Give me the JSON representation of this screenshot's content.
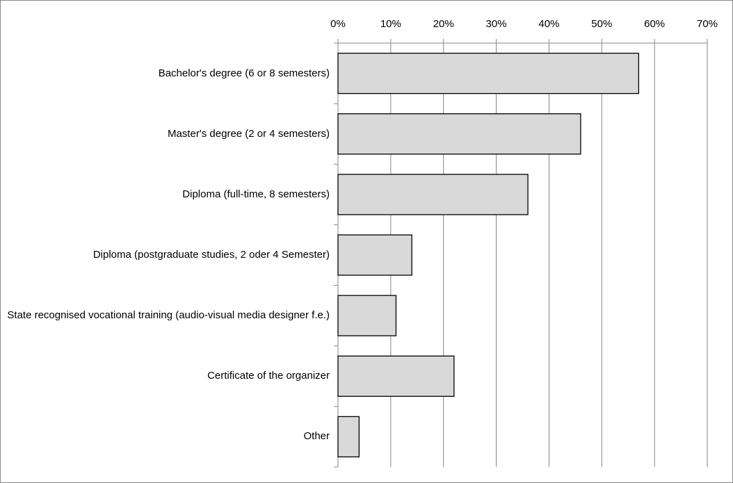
{
  "chart_data": {
    "type": "barh",
    "categories": [
      "Bachelor's degree (6 or 8 semesters)",
      "Master's degree (2 or 4 semesters)",
      "Diploma (full-time, 8 semesters)",
      "Diploma (postgraduate studies, 2 oder 4 Semester)",
      "State recognised vocational training (audio-visual media designer f.e.)",
      "Certificate of the organizer",
      "Other"
    ],
    "values": [
      57,
      46,
      36,
      14,
      11,
      22,
      4
    ],
    "color": "#d9d9d9",
    "xlim": [
      0,
      70
    ],
    "xticks": [
      {
        "value": 0,
        "label": "0%"
      },
      {
        "value": 10,
        "label": "10%"
      },
      {
        "value": 20,
        "label": "20%"
      },
      {
        "value": 30,
        "label": "30%"
      },
      {
        "value": 40,
        "label": "40%"
      },
      {
        "value": 50,
        "label": "50%"
      },
      {
        "value": 60,
        "label": "60%"
      },
      {
        "value": 70,
        "label": "70%"
      }
    ],
    "grid": true
  }
}
